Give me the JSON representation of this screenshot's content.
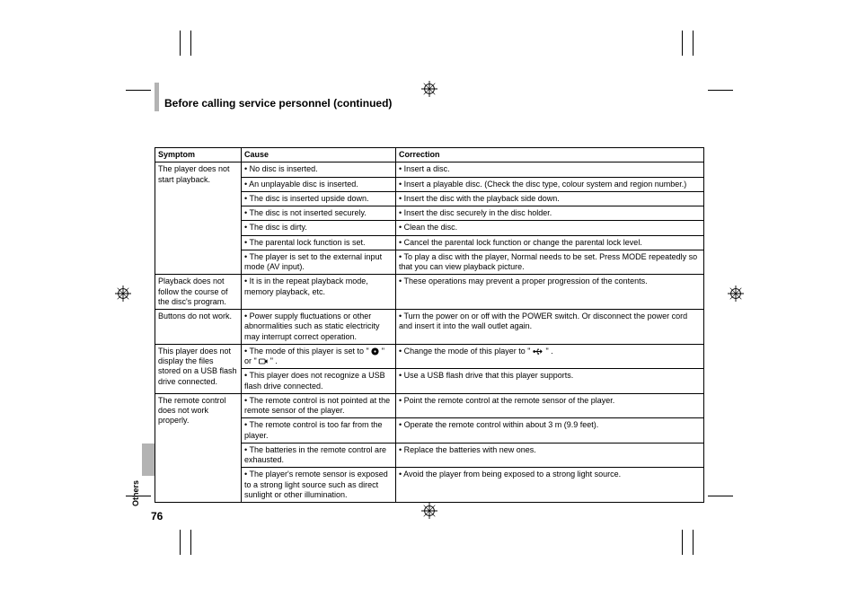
{
  "page": {
    "title": "Before calling service personnel (continued)",
    "number": "76",
    "section": "Others"
  },
  "table": {
    "headers": {
      "symptom": "Symptom",
      "cause": "Cause",
      "correction": "Correction"
    },
    "groups": [
      {
        "symptom": "The player does not start playback.",
        "rows": [
          {
            "cause": "• No disc is inserted.",
            "correction": "• Insert a disc."
          },
          {
            "cause": "• An unplayable disc is inserted.",
            "correction": "• Insert a playable disc. (Check the disc type, colour system and region number.)"
          },
          {
            "cause": "• The disc is inserted upside down.",
            "correction": "• Insert the disc with the playback side down."
          },
          {
            "cause": "• The disc is not inserted securely.",
            "correction": "• Insert the disc securely in the disc holder."
          },
          {
            "cause": "• The disc is dirty.",
            "correction": "• Clean the disc."
          },
          {
            "cause": "• The parental lock function is set.",
            "correction": "• Cancel the parental lock function or change the parental lock level."
          },
          {
            "cause": "• The player is set to the external input mode (AV input).",
            "correction": "• To play a disc with the player, Normal needs to be set. Press MODE repeatedly so that you can view playback picture."
          }
        ]
      },
      {
        "symptom": "Playback does not follow the course of the disc's program.",
        "rows": [
          {
            "cause": "• It is in the repeat playback mode, memory playback, etc.",
            "correction": "• These operations may prevent a proper progression of the contents."
          }
        ]
      },
      {
        "symptom": "Buttons do not work.",
        "rows": [
          {
            "cause": "• Power supply fluctuations or other abnormalities such as static electricity may interrupt correct operation.",
            "correction": "• Turn the power on or off with the POWER switch. Or disconnect the power cord and insert it into the wall outlet again."
          }
        ]
      },
      {
        "symptom": "This player does not display the files stored on a USB flash drive connected.",
        "rows": [
          {
            "cause": "__MODE_ICON_ROW__",
            "correction": "__MODE_ICON_CORR__"
          },
          {
            "cause": "• This player does not recognize a USB flash drive connected.",
            "correction": "• Use a USB flash drive that this player supports."
          }
        ]
      },
      {
        "symptom": "The remote control does not work properly.",
        "rows": [
          {
            "cause": "• The remote control is not pointed at the remote sensor of the player.",
            "correction": "• Point the remote control at the remote sensor of the player."
          },
          {
            "cause": "• The remote control is too far from the player.",
            "correction": "• Operate the remote control within about 3 m (9.9 feet)."
          },
          {
            "cause": "• The batteries in the remote control are exhausted.",
            "correction": "• Replace the batteries with new ones."
          },
          {
            "cause": "• The player's remote sensor is exposed to a strong light source such as direct sunlight or other illumination.",
            "correction": "• Avoid the player from being exposed to a strong light source."
          }
        ]
      }
    ]
  },
  "icons": {
    "mode_row_cause_prefix": "• The mode of this player is set to \" ",
    "mode_row_cause_mid": " \" or \" ",
    "mode_row_cause_suffix": " \" .",
    "mode_row_corr_prefix": "• Change the mode of this player to \" ",
    "mode_row_corr_suffix": " \" ."
  },
  "style": {
    "background": "#ffffff",
    "text_color": "#000000",
    "border_color": "#000000",
    "tab_color": "#b3b3b3",
    "title_bar_color": "#b3b3b3",
    "font_size_body": 9,
    "font_size_title": 12,
    "crop_mark_color": "#000000"
  }
}
